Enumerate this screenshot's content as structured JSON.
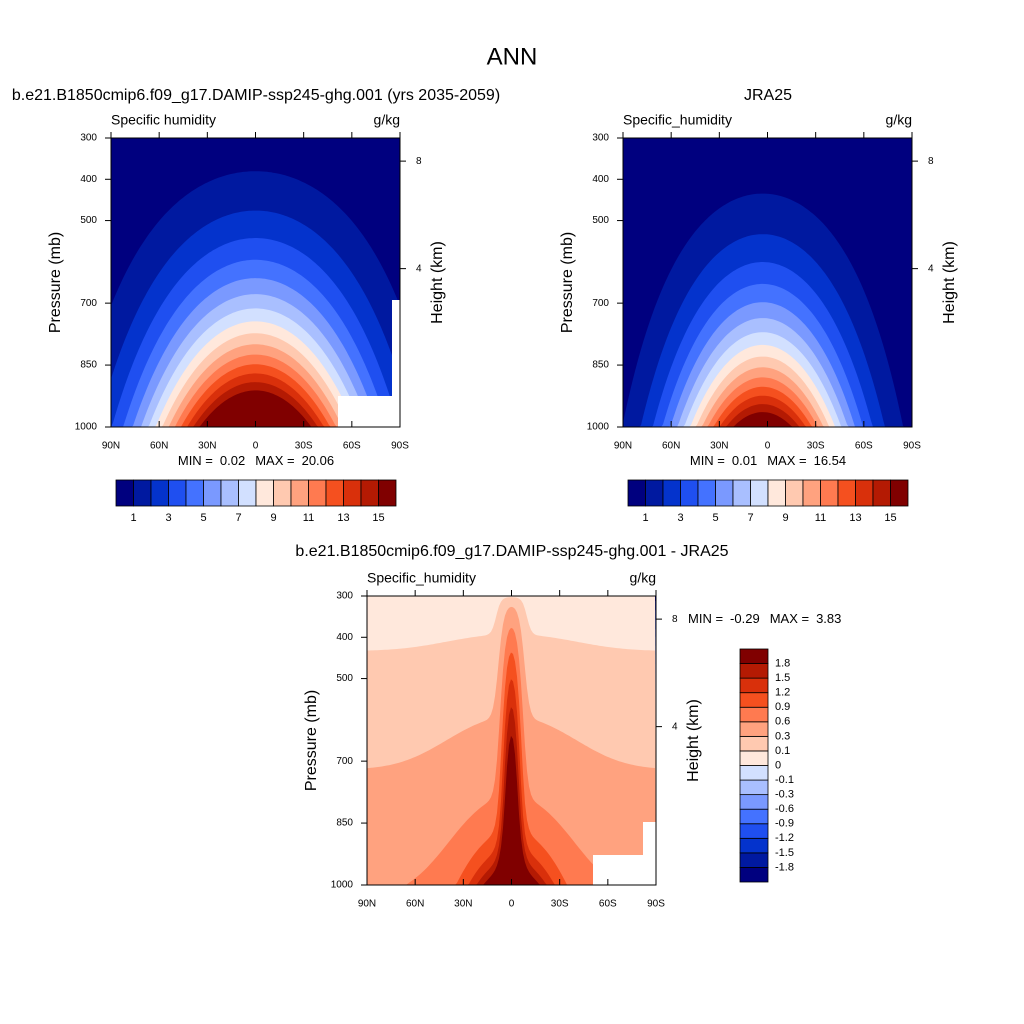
{
  "title": "ANN",
  "chart_data": [
    {
      "type": "contour",
      "title": "b.e21.B1850cmip6.f09_g17.DAMIP-ssp245-ghg.001 (yrs 2035-2059)",
      "left_label": "Specific humidity",
      "right_label": "g/kg",
      "ylabel": "Pressure (mb)",
      "y2label": "Height (km)",
      "xlim": [
        90,
        -90
      ],
      "xticks": [
        {
          "value": 90,
          "label": "90N"
        },
        {
          "value": 60,
          "label": "60N"
        },
        {
          "value": 30,
          "label": "30N"
        },
        0,
        {
          "value": -30,
          "label": "30S"
        },
        {
          "value": -60,
          "label": "60S"
        },
        {
          "value": -90,
          "label": "90S"
        }
      ],
      "ylim": [
        1000,
        300
      ],
      "yticks": [
        300,
        400,
        500,
        700,
        850,
        1000
      ],
      "y2ticks": [
        4,
        8
      ],
      "levels": [
        1,
        2,
        3,
        4,
        5,
        6,
        7,
        8,
        9,
        10,
        11,
        12,
        13,
        14,
        15
      ],
      "colorbar_ticks": [
        1,
        3,
        5,
        7,
        9,
        11,
        13,
        15
      ],
      "colors": [
        "#00007f",
        "#0019a0",
        "#0433cc",
        "#1f4ff0",
        "#4472ff",
        "#7a99ff",
        "#a9bfff",
        "#d2e0ff",
        "#ffe8dc",
        "#ffc9b0",
        "#ffa27f",
        "#ff7a50",
        "#f5501f",
        "#d9300b",
        "#b41a03",
        "#800000"
      ],
      "min_label": "MIN =",
      "min": 0.02,
      "max_label": "MAX =",
      "max": 20.06
    },
    {
      "type": "contour",
      "title": "JRA25",
      "left_label": "Specific_humidity",
      "right_label": "g/kg",
      "ylabel": "Pressure (mb)",
      "y2label": "Height (km)",
      "xlim": [
        90,
        -90
      ],
      "xticks": [
        {
          "value": 90,
          "label": "90N"
        },
        {
          "value": 60,
          "label": "60N"
        },
        {
          "value": 30,
          "label": "30N"
        },
        0,
        {
          "value": -30,
          "label": "30S"
        },
        {
          "value": -60,
          "label": "60S"
        },
        {
          "value": -90,
          "label": "90S"
        }
      ],
      "ylim": [
        1000,
        300
      ],
      "yticks": [
        300,
        400,
        500,
        700,
        850,
        1000
      ],
      "y2ticks": [
        4,
        8
      ],
      "levels": [
        1,
        2,
        3,
        4,
        5,
        6,
        7,
        8,
        9,
        10,
        11,
        12,
        13,
        14,
        15
      ],
      "colorbar_ticks": [
        1,
        3,
        5,
        7,
        9,
        11,
        13,
        15
      ],
      "colors": [
        "#00007f",
        "#0019a0",
        "#0433cc",
        "#1f4ff0",
        "#4472ff",
        "#7a99ff",
        "#a9bfff",
        "#d2e0ff",
        "#ffe8dc",
        "#ffc9b0",
        "#ffa27f",
        "#ff7a50",
        "#f5501f",
        "#d9300b",
        "#b41a03",
        "#800000"
      ],
      "min_label": "MIN =",
      "min": 0.01,
      "max_label": "MAX =",
      "max": 16.54
    },
    {
      "type": "contour",
      "title": "b.e21.B1850cmip6.f09_g17.DAMIP-ssp245-ghg.001 - JRA25",
      "left_label": "Specific_humidity",
      "right_label": "g/kg",
      "ylabel": "Pressure (mb)",
      "y2label": "Height (km)",
      "xlim": [
        90,
        -90
      ],
      "xticks": [
        {
          "value": 90,
          "label": "90N"
        },
        {
          "value": 60,
          "label": "60N"
        },
        {
          "value": 30,
          "label": "30N"
        },
        0,
        {
          "value": -30,
          "label": "30S"
        },
        {
          "value": -60,
          "label": "60S"
        },
        {
          "value": -90,
          "label": "90S"
        }
      ],
      "ylim": [
        1000,
        300
      ],
      "yticks": [
        300,
        400,
        500,
        700,
        850,
        1000
      ],
      "y2ticks": [
        4,
        8
      ],
      "levels": [
        -1.8,
        -1.5,
        -1.2,
        -0.9,
        -0.6,
        -0.3,
        -0.1,
        0,
        0.1,
        0.3,
        0.6,
        0.9,
        1.2,
        1.5,
        1.8
      ],
      "colorbar_ticks": [
        -1.8,
        -1.5,
        -1.2,
        -0.9,
        -0.6,
        -0.3,
        -0.1,
        0,
        0.1,
        0.3,
        0.6,
        0.9,
        1.2,
        1.5,
        1.8
      ],
      "colors": [
        "#00007f",
        "#0019a0",
        "#0433cc",
        "#1f4ff0",
        "#4472ff",
        "#7a99ff",
        "#a9bfff",
        "#d2e0ff",
        "#ffe8dc",
        "#ffc9b0",
        "#ffa27f",
        "#ff7a50",
        "#f5501f",
        "#d9300b",
        "#b41a03",
        "#800000"
      ],
      "min_label": "MIN =",
      "min": -0.29,
      "max_label": "MAX =",
      "max": 3.83
    }
  ]
}
